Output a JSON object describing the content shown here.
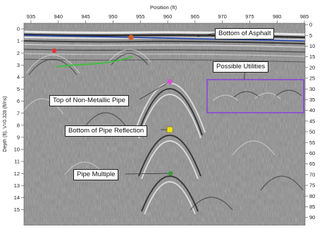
{
  "figure": {
    "top_axis_title": "Position (ft)",
    "left_axis_title": "Depth (ft), V=0.328 (ft/ns)",
    "top_ticks": [
      "935",
      "940",
      "945",
      "950",
      "955",
      "960",
      "965",
      "970",
      "975",
      "980",
      "985"
    ],
    "left_ticks": [
      "0",
      "1",
      "2",
      "3",
      "4",
      "5",
      "6",
      "7",
      "8",
      "9",
      "10",
      "11",
      "12",
      "13",
      "14",
      "15"
    ],
    "right_ticks": [
      "0",
      "5",
      "10",
      "15",
      "20",
      "25",
      "30",
      "35",
      "40",
      "45",
      "50",
      "55",
      "60",
      "65",
      "70",
      "75",
      "80",
      "85",
      "90"
    ]
  },
  "annotations": {
    "bottom_of_asphalt": "Bottom of Asphalt",
    "possible_utilities": "Possible Utilities",
    "top_of_pipe": "Top of Non-Metallic Pipe",
    "bottom_of_pipe": "Bottom of Pipe Reflection",
    "pipe_multiple": "Pipe Multiple"
  },
  "colors": {
    "asphalt_line": "#1c3fae",
    "green_trace": "#3fbf3f",
    "utilities_box": "#8a4fd2",
    "marker_orange": "#d2602d",
    "marker_red": "#e23434",
    "marker_magenta": "#d64fd6",
    "marker_yellow": "#f2e200",
    "marker_green": "#3a9a3a"
  }
}
